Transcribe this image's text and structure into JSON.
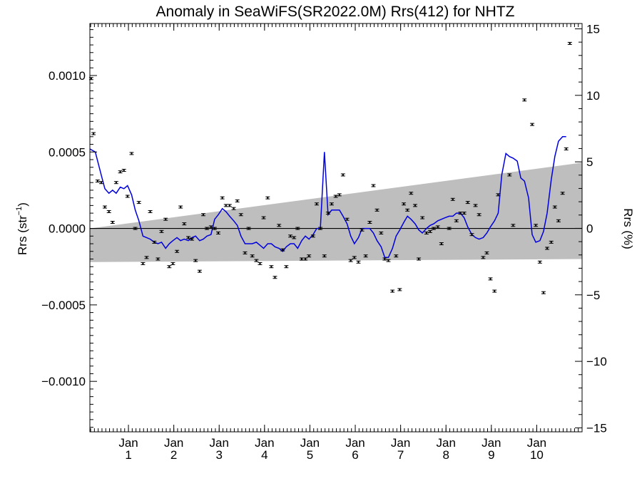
{
  "chart_data": {
    "type": "scatter",
    "title": "Anomaly in SeaWiFS(SR2022.0M) Rrs(412) for NHTZ",
    "ylabel_main": "Rrs (str",
    "ylabel_sup": "−1",
    "ylabel_close": ")",
    "y2label": "Rrs (%)",
    "ylim": [
      -0.00133,
      0.00134
    ],
    "y2lim": [
      -15.3,
      15.4
    ],
    "x_range": [
      0,
      10.85
    ],
    "yticks": [
      {
        "v": 0.001,
        "label": "0.0010"
      },
      {
        "v": 0.0005,
        "label": "0.0005"
      },
      {
        "v": 0.0,
        "label": "0.0000"
      },
      {
        "v": -0.0005,
        "label": "−0.0005"
      },
      {
        "v": -0.001,
        "label": "−0.0010"
      }
    ],
    "y2ticks": [
      {
        "v": 15,
        "label": "15"
      },
      {
        "v": 10,
        "label": "10"
      },
      {
        "v": 5,
        "label": "5"
      },
      {
        "v": 0,
        "label": "0"
      },
      {
        "v": -5,
        "label": "−5"
      },
      {
        "v": -10,
        "label": "−10"
      },
      {
        "v": -15,
        "label": "−15"
      }
    ],
    "xticks": [
      {
        "x": 0.85,
        "month": "Jan",
        "year": "1"
      },
      {
        "x": 1.85,
        "month": "Jan",
        "year": "2"
      },
      {
        "x": 2.85,
        "month": "Jan",
        "year": "3"
      },
      {
        "x": 3.85,
        "month": "Jan",
        "year": "4"
      },
      {
        "x": 4.85,
        "month": "Jan",
        "year": "5"
      },
      {
        "x": 5.85,
        "month": "Jan",
        "year": "6"
      },
      {
        "x": 6.85,
        "month": "Jan",
        "year": "7"
      },
      {
        "x": 7.85,
        "month": "Jan",
        "year": "8"
      },
      {
        "x": 8.85,
        "month": "Jan",
        "year": "9"
      },
      {
        "x": 9.85,
        "month": "Jan",
        "year": "10"
      }
    ],
    "band": {
      "upper": [
        [
          0,
          0.0
        ],
        [
          10.85,
          0.00043
        ]
      ],
      "lower": [
        [
          0,
          -0.00022
        ],
        [
          10.85,
          -0.0002
        ]
      ],
      "color": "#bebebe"
    },
    "zero_line": 0.0,
    "points": [
      [
        0.03,
        0.00098
      ],
      [
        0.08,
        0.00062
      ],
      [
        0.17,
        0.00031
      ],
      [
        0.25,
        0.0003
      ],
      [
        0.33,
        0.00014
      ],
      [
        0.42,
        0.00011
      ],
      [
        0.5,
        4e-05
      ],
      [
        0.58,
        0.0003
      ],
      [
        0.67,
        0.00037
      ],
      [
        0.75,
        0.00038
      ],
      [
        0.83,
        0.00021
      ],
      [
        0.92,
        0.00049
      ],
      [
        1.0,
        0.0
      ],
      [
        1.08,
        0.00017
      ],
      [
        1.17,
        -0.00023
      ],
      [
        1.25,
        -0.00019
      ],
      [
        1.33,
        0.00011
      ],
      [
        1.42,
        -9e-05
      ],
      [
        1.5,
        -0.0002
      ],
      [
        1.58,
        -2e-05
      ],
      [
        1.67,
        6e-05
      ],
      [
        1.75,
        -0.00025
      ],
      [
        1.83,
        -0.00023
      ],
      [
        1.92,
        -0.00015
      ],
      [
        2.0,
        0.00014
      ],
      [
        2.08,
        3e-05
      ],
      [
        2.17,
        -6e-05
      ],
      [
        2.25,
        -7e-05
      ],
      [
        2.33,
        -0.00021
      ],
      [
        2.42,
        -0.00028
      ],
      [
        2.5,
        9e-05
      ],
      [
        2.58,
        0.0
      ],
      [
        2.67,
        1e-05
      ],
      [
        2.75,
        0.0
      ],
      [
        2.83,
        -3e-05
      ],
      [
        2.92,
        0.0002
      ],
      [
        3.0,
        0.00015
      ],
      [
        3.08,
        0.00015
      ],
      [
        3.17,
        0.00013
      ],
      [
        3.25,
        0.00018
      ],
      [
        3.33,
        9e-05
      ],
      [
        3.42,
        -0.00016
      ],
      [
        3.5,
        0.0
      ],
      [
        3.58,
        -0.00018
      ],
      [
        3.67,
        -0.00021
      ],
      [
        3.75,
        -0.00023
      ],
      [
        3.83,
        7e-05
      ],
      [
        3.92,
        0.0002
      ],
      [
        4.0,
        -0.00025
      ],
      [
        4.08,
        -0.00032
      ],
      [
        4.17,
        2e-05
      ],
      [
        4.25,
        -0.00014
      ],
      [
        4.33,
        -0.00025
      ],
      [
        4.42,
        -5e-05
      ],
      [
        4.5,
        -6e-05
      ],
      [
        4.58,
        0.0
      ],
      [
        4.67,
        -0.0002
      ],
      [
        4.75,
        -0.0002
      ],
      [
        4.83,
        -0.00018
      ],
      [
        4.92,
        -5e-05
      ],
      [
        5.0,
        0.00016
      ],
      [
        5.08,
        0.0
      ],
      [
        5.17,
        -0.00018
      ],
      [
        5.25,
        0.0001
      ],
      [
        5.33,
        0.00016
      ],
      [
        5.42,
        0.00021
      ],
      [
        5.5,
        0.00022
      ],
      [
        5.58,
        0.00035
      ],
      [
        5.67,
        6e-05
      ],
      [
        5.75,
        -0.00021
      ],
      [
        5.83,
        -0.00019
      ],
      [
        5.92,
        -0.00022
      ],
      [
        6.0,
        -1e-05
      ],
      [
        6.08,
        -0.00018
      ],
      [
        6.17,
        4e-05
      ],
      [
        6.25,
        0.00028
      ],
      [
        6.33,
        0.00012
      ],
      [
        6.42,
        -3e-05
      ],
      [
        6.5,
        -0.0002
      ],
      [
        6.58,
        -0.00021
      ],
      [
        6.67,
        -0.00041
      ],
      [
        6.75,
        -0.00018
      ],
      [
        6.83,
        -0.0004
      ],
      [
        6.92,
        0.00016
      ],
      [
        7.0,
        0.00012
      ],
      [
        7.08,
        0.00023
      ],
      [
        7.17,
        0.00015
      ],
      [
        7.25,
        -0.0002
      ],
      [
        7.33,
        7e-05
      ],
      [
        7.42,
        -3e-05
      ],
      [
        7.5,
        -2e-05
      ],
      [
        7.58,
        0.0
      ],
      [
        7.67,
        1e-05
      ],
      [
        7.75,
        -0.0001
      ],
      [
        7.92,
        0.0
      ],
      [
        8.0,
        0.00019
      ],
      [
        8.08,
        5e-05
      ],
      [
        8.17,
        0.0001
      ],
      [
        8.25,
        0.0001
      ],
      [
        8.33,
        0.00017
      ],
      [
        8.42,
        -4e-05
      ],
      [
        8.5,
        0.00015
      ],
      [
        8.58,
        9e-05
      ],
      [
        8.67,
        -0.00019
      ],
      [
        8.75,
        -0.00016
      ],
      [
        8.83,
        -0.00033
      ],
      [
        8.92,
        -0.00041
      ],
      [
        9.0,
        0.00022
      ],
      [
        9.25,
        0.00035
      ],
      [
        9.33,
        2e-05
      ],
      [
        9.58,
        0.00084
      ],
      [
        9.75,
        0.00068
      ],
      [
        9.83,
        2e-05
      ],
      [
        9.92,
        -0.00022
      ],
      [
        10.0,
        -0.00042
      ],
      [
        10.08,
        -0.00013
      ],
      [
        10.17,
        -9e-05
      ],
      [
        10.25,
        0.00014
      ],
      [
        10.33,
        5e-05
      ],
      [
        10.42,
        0.00023
      ],
      [
        10.5,
        0.00052
      ],
      [
        10.58,
        0.00121
      ]
    ],
    "smooth_line": [
      [
        0.0,
        0.00052
      ],
      [
        0.12,
        0.0005
      ],
      [
        0.25,
        0.00035
      ],
      [
        0.33,
        0.00026
      ],
      [
        0.42,
        0.00023
      ],
      [
        0.5,
        0.00025
      ],
      [
        0.58,
        0.00023
      ],
      [
        0.67,
        0.00027
      ],
      [
        0.75,
        0.00026
      ],
      [
        0.83,
        0.00028
      ],
      [
        0.92,
        0.00022
      ],
      [
        1.0,
        0.00012
      ],
      [
        1.08,
        5e-05
      ],
      [
        1.17,
        -5e-05
      ],
      [
        1.25,
        -6e-05
      ],
      [
        1.33,
        -7e-05
      ],
      [
        1.42,
        -9e-05
      ],
      [
        1.5,
        -0.0001
      ],
      [
        1.58,
        -9e-05
      ],
      [
        1.67,
        -0.00013
      ],
      [
        1.75,
        -0.0001
      ],
      [
        1.83,
        -8e-05
      ],
      [
        1.92,
        -6e-05
      ],
      [
        2.0,
        -8e-05
      ],
      [
        2.08,
        -7e-05
      ],
      [
        2.17,
        -8e-05
      ],
      [
        2.25,
        -6e-05
      ],
      [
        2.33,
        -5e-05
      ],
      [
        2.42,
        -8e-05
      ],
      [
        2.5,
        -7e-05
      ],
      [
        2.58,
        -5e-05
      ],
      [
        2.67,
        -4e-05
      ],
      [
        2.75,
        6e-05
      ],
      [
        2.83,
        9e-05
      ],
      [
        2.92,
        0.00013
      ],
      [
        3.0,
        0.00011
      ],
      [
        3.08,
        8e-05
      ],
      [
        3.17,
        5e-05
      ],
      [
        3.25,
        2e-05
      ],
      [
        3.33,
        -5e-05
      ],
      [
        3.42,
        -0.0001
      ],
      [
        3.5,
        -0.0001
      ],
      [
        3.58,
        -0.0001
      ],
      [
        3.67,
        -9e-05
      ],
      [
        3.75,
        -0.00011
      ],
      [
        3.83,
        -0.00013
      ],
      [
        3.92,
        -0.0001
      ],
      [
        4.0,
        -0.0001
      ],
      [
        4.08,
        -0.00012
      ],
      [
        4.17,
        -0.00013
      ],
      [
        4.25,
        -0.00015
      ],
      [
        4.33,
        -0.00012
      ],
      [
        4.42,
        -0.0001
      ],
      [
        4.5,
        -0.0001
      ],
      [
        4.58,
        -0.00013
      ],
      [
        4.67,
        -8e-05
      ],
      [
        4.75,
        -5e-05
      ],
      [
        4.83,
        -7e-05
      ],
      [
        4.92,
        -4e-05
      ],
      [
        5.0,
        0.0
      ],
      [
        5.08,
        0.0
      ],
      [
        5.17,
        0.0005
      ],
      [
        5.25,
        9e-05
      ],
      [
        5.33,
        0.00012
      ],
      [
        5.42,
        0.00012
      ],
      [
        5.5,
        0.00012
      ],
      [
        5.58,
        8e-05
      ],
      [
        5.67,
        3e-05
      ],
      [
        5.75,
        -5e-05
      ],
      [
        5.83,
        -0.0001
      ],
      [
        5.92,
        -6e-05
      ],
      [
        6.0,
        0.0
      ],
      [
        6.08,
        0.0
      ],
      [
        6.17,
        0.0
      ],
      [
        6.25,
        -3e-05
      ],
      [
        6.33,
        -8e-05
      ],
      [
        6.42,
        -0.00012
      ],
      [
        6.5,
        -0.00019
      ],
      [
        6.58,
        -0.00019
      ],
      [
        6.67,
        -0.00013
      ],
      [
        6.75,
        -5e-05
      ],
      [
        6.83,
        -1e-05
      ],
      [
        6.92,
        4e-05
      ],
      [
        7.0,
        8e-05
      ],
      [
        7.08,
        6e-05
      ],
      [
        7.17,
        3e-05
      ],
      [
        7.25,
        -1e-05
      ],
      [
        7.33,
        -3e-05
      ],
      [
        7.42,
        0.0
      ],
      [
        7.5,
        2e-05
      ],
      [
        7.58,
        3e-05
      ],
      [
        7.67,
        5e-05
      ],
      [
        7.75,
        6e-05
      ],
      [
        7.83,
        7e-05
      ],
      [
        7.92,
        8e-05
      ],
      [
        8.0,
        8e-05
      ],
      [
        8.08,
        0.0001
      ],
      [
        8.17,
        0.0001
      ],
      [
        8.25,
        7e-05
      ],
      [
        8.33,
        1e-05
      ],
      [
        8.42,
        -4e-05
      ],
      [
        8.5,
        -6e-05
      ],
      [
        8.58,
        -7e-05
      ],
      [
        8.67,
        -6e-05
      ],
      [
        8.75,
        -3e-05
      ],
      [
        8.83,
        1e-05
      ],
      [
        8.92,
        5e-05
      ],
      [
        9.0,
        0.0001
      ],
      [
        9.08,
        0.00035
      ],
      [
        9.17,
        0.00049
      ],
      [
        9.25,
        0.00047
      ],
      [
        9.33,
        0.00046
      ],
      [
        9.42,
        0.00044
      ],
      [
        9.5,
        0.00033
      ],
      [
        9.58,
        0.00031
      ],
      [
        9.67,
        0.0002
      ],
      [
        9.75,
        -4e-05
      ],
      [
        9.83,
        -9e-05
      ],
      [
        9.92,
        -8e-05
      ],
      [
        10.0,
        -2e-05
      ],
      [
        10.08,
        0.0001
      ],
      [
        10.17,
        0.00032
      ],
      [
        10.25,
        0.00047
      ],
      [
        10.33,
        0.00057
      ],
      [
        10.42,
        0.0006
      ],
      [
        10.5,
        0.0006
      ]
    ],
    "line_color": "#0000dd",
    "point_color": "#000000"
  }
}
